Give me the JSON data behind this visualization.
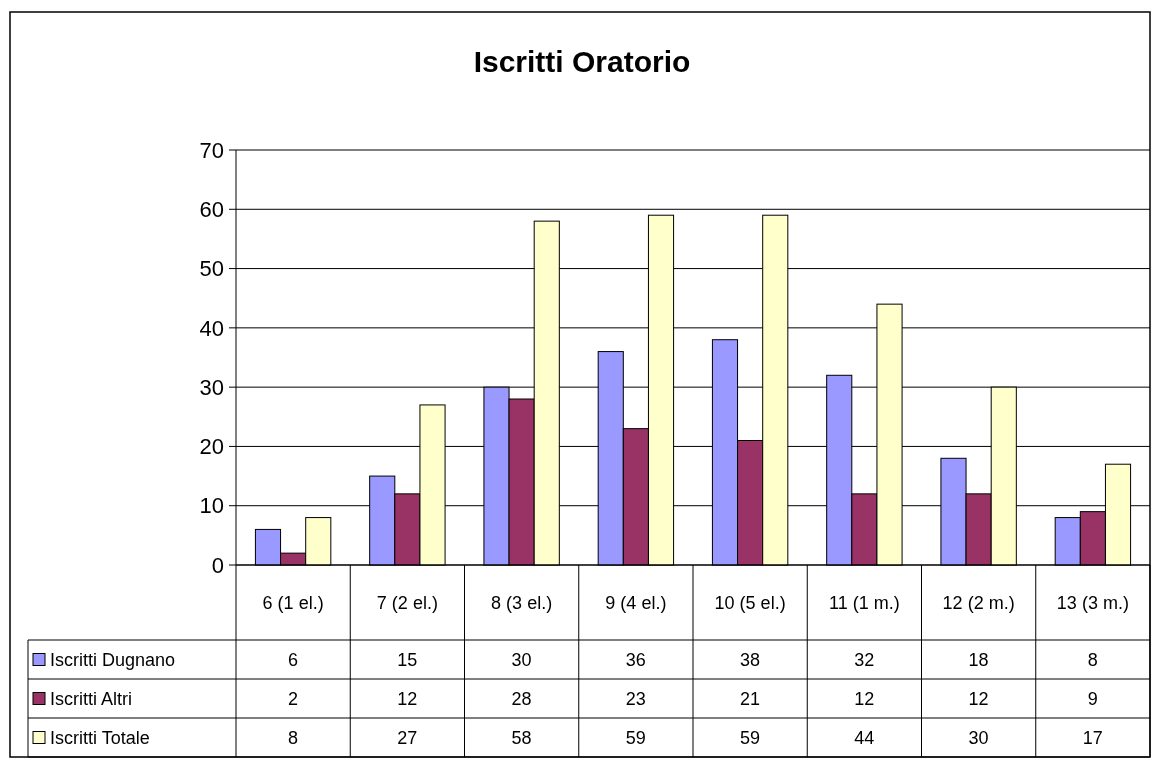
{
  "chart_data": {
    "type": "bar",
    "title": "Iscritti Oratorio",
    "categories": [
      "6 (1 el.)",
      "7 (2 el.)",
      "8 (3 el.)",
      "9 (4 el.)",
      "10 (5 el.)",
      "11 (1 m.)",
      "12 (2 m.)",
      "13 (3 m.)"
    ],
    "series": [
      {
        "name": "Iscritti Dugnano",
        "color": "#9999ff",
        "values": [
          6,
          15,
          30,
          36,
          38,
          32,
          18,
          8
        ]
      },
      {
        "name": "Iscritti Altri",
        "color": "#993366",
        "values": [
          2,
          12,
          28,
          23,
          21,
          12,
          12,
          9
        ]
      },
      {
        "name": "Iscritti Totale",
        "color": "#ffffcc",
        "values": [
          8,
          27,
          58,
          59,
          59,
          44,
          30,
          17
        ]
      }
    ],
    "ylim": [
      0,
      70
    ],
    "yticks": [
      0,
      10,
      20,
      30,
      40,
      50,
      60,
      70
    ],
    "grid": "y",
    "legend": "bottom",
    "data_labels": true
  }
}
